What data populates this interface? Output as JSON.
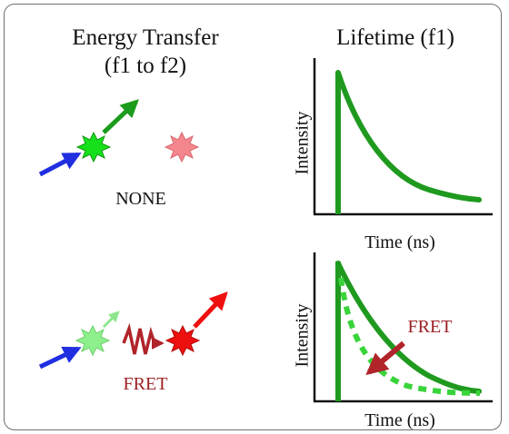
{
  "left": {
    "title_line1": "Energy Transfer",
    "title_line2": "(f1 to f2)",
    "none_label": "NONE",
    "fret_label": "FRET"
  },
  "right": {
    "title": "Lifetime (f1)",
    "top_plot": {
      "ylabel": "Intensity",
      "xlabel": "Time (ns)"
    },
    "bottom_plot": {
      "ylabel": "Intensity",
      "xlabel": "Time (ns)",
      "annotation": "FRET"
    }
  },
  "colors": {
    "excitation_arrow": "#1f2fe0",
    "donor_bright": "#16e01b",
    "donor_faded": "#8ef08c",
    "acceptor_faded": "#f4878d",
    "acceptor_bright": "#ee0f0f",
    "fret_text": "#9b1f22",
    "fret_wave": "#b0242a",
    "decay_curve": "#1f9a1f",
    "axis": "#111111"
  },
  "icons": [
    "excitation-arrow-icon",
    "emission-arrow-icon",
    "donor-star-icon",
    "acceptor-star-icon",
    "fret-zigzag-icon"
  ]
}
